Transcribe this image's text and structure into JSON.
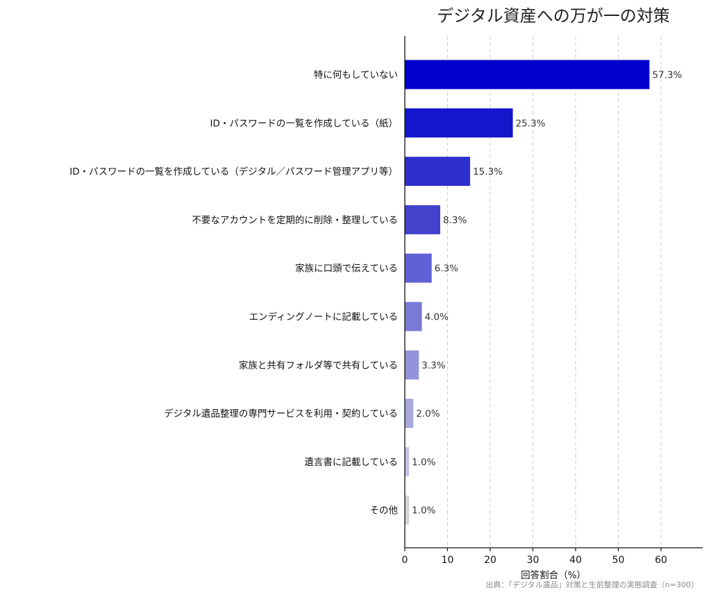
{
  "chart_data": {
    "type": "bar",
    "orientation": "horizontal",
    "title": "デジタル資産への万が一の対策",
    "xlabel": "回答割合（%）",
    "ylabel": "",
    "xlim": [
      0,
      70
    ],
    "xticks": [
      0,
      10,
      20,
      30,
      40,
      50,
      60
    ],
    "grid": "vertical-dashed",
    "categories": [
      "特に何もしていない",
      "ID・パスワードの一覧を作成している（紙）",
      "ID・パスワードの一覧を作成している（デジタル／パスワード管理アプリ等）",
      "不要なアカウントを定期的に削除・整理している",
      "家族に口頭で伝えている",
      "エンディングノートに記載している",
      "家族と共有フォルダ等で共有している",
      "デジタル遺品整理の専門サービスを利用・契約している",
      "遺言書に記載している",
      "その他"
    ],
    "values": [
      57.3,
      25.3,
      15.3,
      8.3,
      6.3,
      4.0,
      3.3,
      2.0,
      1.0,
      1.0
    ],
    "value_labels": [
      "57.3%",
      "25.3%",
      "15.3%",
      "8.3%",
      "6.3%",
      "4.0%",
      "3.3%",
      "2.0%",
      "1.0%",
      "1.0%"
    ],
    "colors": [
      "#0000cc",
      "#1515cc",
      "#2e2ecc",
      "#4242cc",
      "#6161d6",
      "#7a7ad6",
      "#9393db",
      "#a8a8e0",
      "#c3c3e8",
      "#cfd6d6"
    ]
  },
  "source": "出典：「デジタル遺品」対策と生前整理の実態調査（n=300）"
}
